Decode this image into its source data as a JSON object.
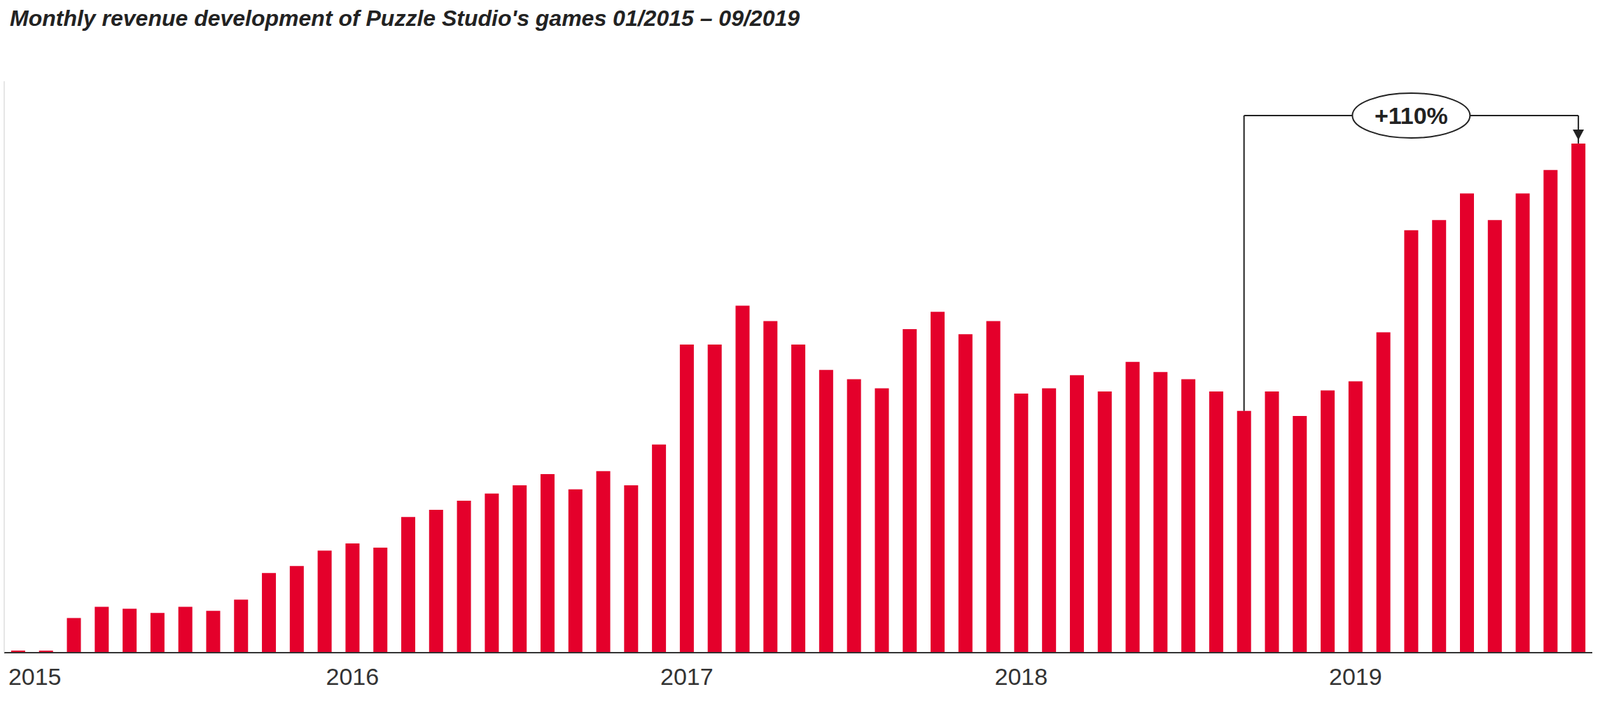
{
  "chart_data": {
    "type": "bar",
    "title": "Monthly revenue development of Puzzle Studio's games 01/2015 – 09/2019",
    "categories": [
      "2015",
      null,
      null,
      null,
      null,
      null,
      null,
      null,
      null,
      null,
      null,
      null,
      "2016",
      null,
      null,
      null,
      null,
      null,
      null,
      null,
      null,
      null,
      null,
      null,
      "2017",
      null,
      null,
      null,
      null,
      null,
      null,
      null,
      null,
      null,
      null,
      null,
      "2018",
      null,
      null,
      null,
      null,
      null,
      null,
      null,
      null,
      null,
      null,
      null,
      "2019",
      null,
      null,
      null,
      null,
      null,
      null,
      null,
      null
    ],
    "values": [
      2,
      2,
      34,
      45,
      43,
      39,
      45,
      41,
      52,
      78,
      85,
      100,
      107,
      103,
      133,
      140,
      149,
      156,
      164,
      175,
      160,
      178,
      164,
      204,
      302,
      302,
      340,
      325,
      302,
      277,
      268,
      259,
      317,
      334,
      312,
      325,
      254,
      259,
      272,
      256,
      285,
      275,
      268,
      256,
      237,
      256,
      232,
      257,
      266,
      314,
      414,
      424,
      450,
      424,
      450,
      473,
      499
    ],
    "color": "#e4002b",
    "ylim": [
      0,
      560
    ],
    "grid": false,
    "tick_labels": "x",
    "annotation": {
      "text": "+110%",
      "from_index": 44,
      "to_index": 56
    }
  }
}
